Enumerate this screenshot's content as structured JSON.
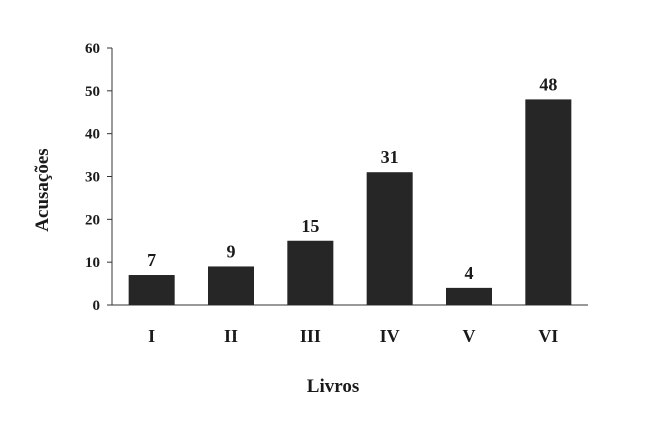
{
  "chart_data": {
    "type": "bar",
    "categories": [
      "I",
      "II",
      "III",
      "IV",
      "V",
      "VI"
    ],
    "values": [
      7,
      9,
      15,
      31,
      4,
      48
    ],
    "data_labels": [
      "7",
      "9",
      "15",
      "31",
      "4",
      "48"
    ],
    "xlabel": "Livros",
    "ylabel": "Acusações",
    "ylim": [
      0,
      60
    ],
    "yticks": [
      0,
      10,
      20,
      30,
      40,
      50,
      60
    ],
    "grid": false,
    "legend": "none",
    "bar_color": "#262626"
  }
}
